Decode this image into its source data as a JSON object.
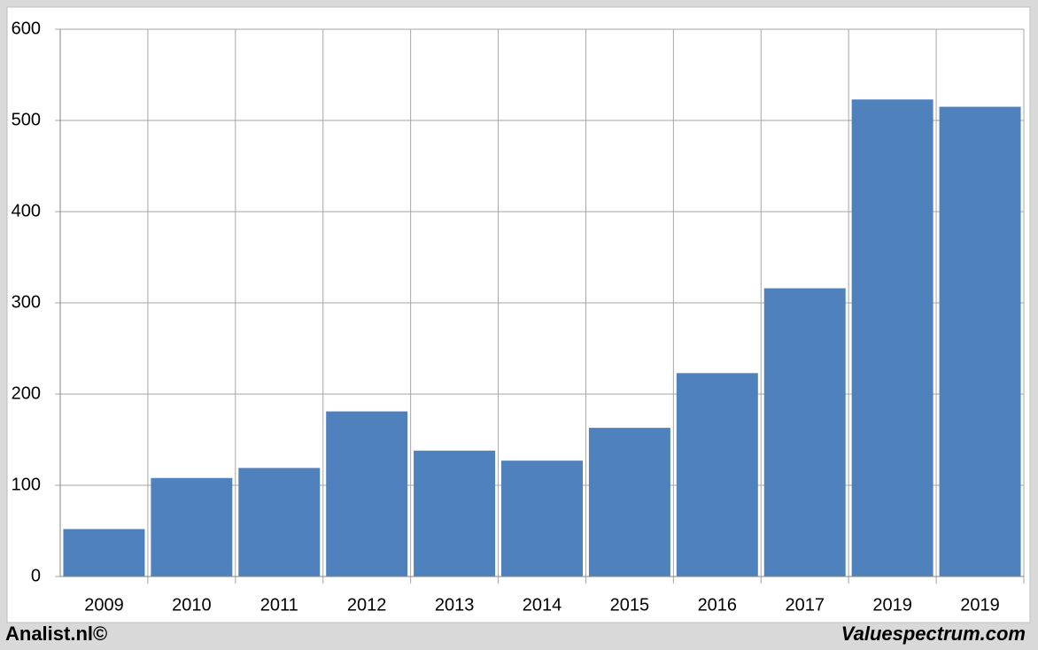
{
  "chart_data": {
    "type": "bar",
    "categories": [
      "2009",
      "2010",
      "2011",
      "2012",
      "2013",
      "2014",
      "2015",
      "2016",
      "2017",
      "2019",
      "2019"
    ],
    "values": [
      52,
      108,
      119,
      181,
      138,
      127,
      163,
      223,
      316,
      523,
      515
    ],
    "color": "#4f81bd",
    "ylim": [
      0,
      600
    ],
    "yticks": [
      0,
      100,
      200,
      300,
      400,
      500,
      600
    ],
    "grid": true,
    "footer_left": "Analist.nl©",
    "footer_right": "Valuespectrum.com"
  }
}
